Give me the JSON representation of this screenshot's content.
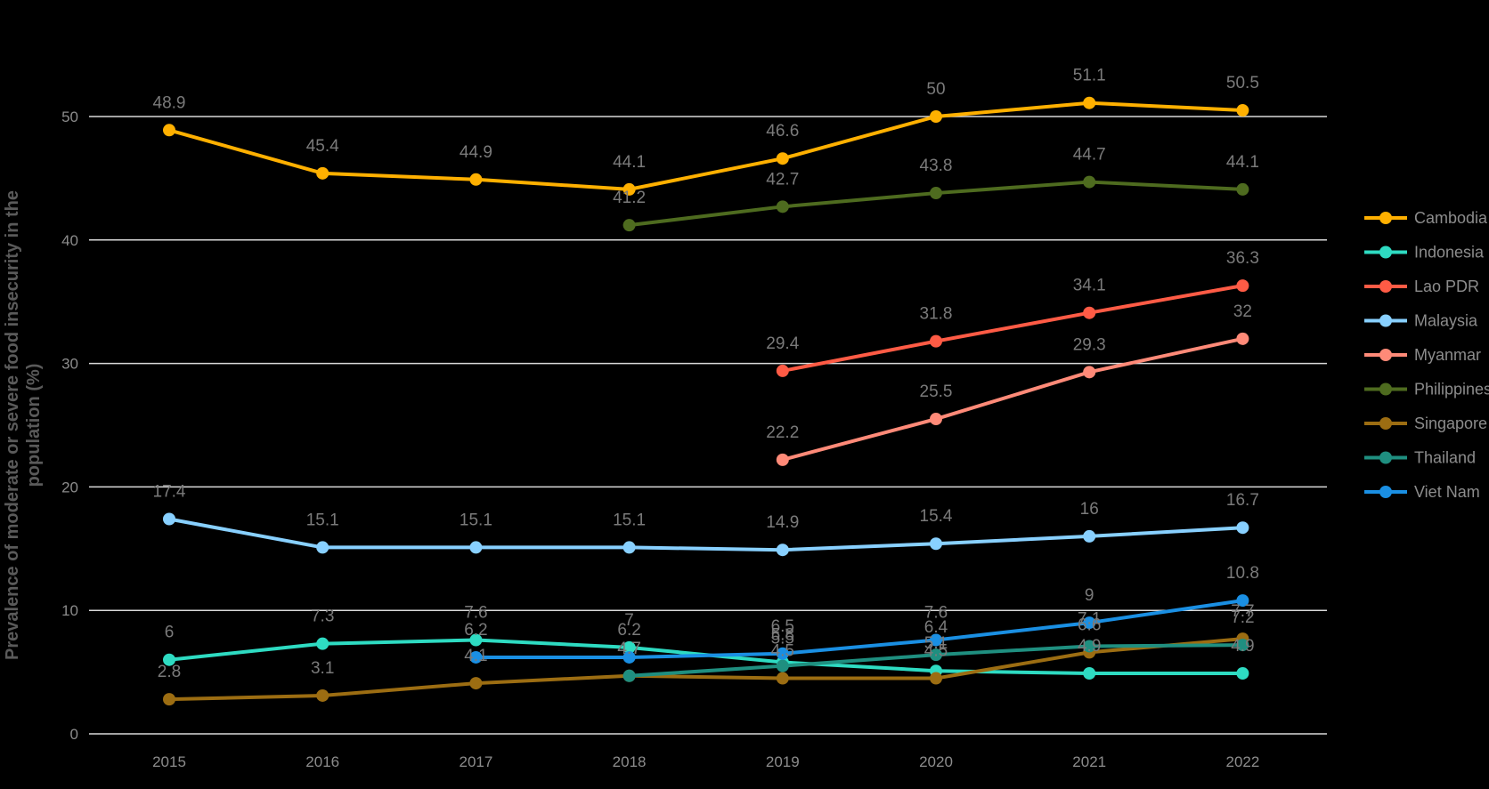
{
  "chart_data": {
    "type": "line",
    "title": "",
    "xlabel": "",
    "ylabel": "Prevalence of moderate or severe food insecurity in the population (%)",
    "ylabel_lines": [
      "Prevalence of moderate or severe food insecurity in the",
      "population (%)"
    ],
    "ylim": [
      0,
      50
    ],
    "yticks": [
      "0",
      "10",
      "20",
      "30",
      "40",
      "50"
    ],
    "grid": true,
    "legend": "right",
    "categories": [
      "2015",
      "2016",
      "2017",
      "2018",
      "2019",
      "2020",
      "2021",
      "2022"
    ],
    "series": [
      {
        "name": "Cambodia",
        "color": "#FFB000",
        "values": [
          48.9,
          45.4,
          44.9,
          44.1,
          46.6,
          50,
          51.1,
          50.5
        ],
        "labels": [
          "48.9",
          "45.4",
          "44.9",
          "44.1",
          "46.6",
          "50",
          "51.1",
          "50.5"
        ]
      },
      {
        "name": "Indonesia",
        "color": "#2EDBC2",
        "values": [
          6,
          7.3,
          7.6,
          7,
          5.8,
          5.1,
          4.9,
          4.9
        ],
        "labels": [
          "6",
          "7.3",
          "7.6",
          "7",
          "5.8",
          "5.1",
          "4.9",
          "4.9"
        ]
      },
      {
        "name": "Lao PDR",
        "color": "#FF5B45",
        "values": [
          null,
          null,
          null,
          null,
          29.4,
          31.8,
          34.1,
          36.3
        ],
        "labels": [
          null,
          null,
          null,
          null,
          "29.4",
          "31.8",
          "34.1",
          "36.3"
        ]
      },
      {
        "name": "Malaysia",
        "color": "#88D0FF",
        "values": [
          17.4,
          15.1,
          15.1,
          15.1,
          14.9,
          15.4,
          16,
          16.7
        ],
        "labels": [
          "17.4",
          "15.1",
          "15.1",
          "15.1",
          "14.9",
          "15.4",
          "16",
          "16.7"
        ]
      },
      {
        "name": "Myanmar",
        "color": "#FF8A78",
        "values": [
          null,
          null,
          null,
          null,
          22.2,
          25.5,
          29.3,
          32
        ],
        "labels": [
          null,
          null,
          null,
          null,
          "22.2",
          "25.5",
          "29.3",
          "32"
        ]
      },
      {
        "name": "Philippines",
        "color": "#4E6B1F",
        "values": [
          null,
          null,
          null,
          41.2,
          42.7,
          43.8,
          44.7,
          44.1
        ],
        "labels": [
          null,
          null,
          null,
          "41.2",
          "42.7",
          "43.8",
          "44.7",
          "44.1"
        ]
      },
      {
        "name": "Singapore",
        "color": "#9C6D12",
        "values": [
          2.8,
          3.1,
          4.1,
          4.7,
          4.5,
          4.5,
          6.6,
          7.7
        ],
        "labels": [
          "2.8",
          "3.1",
          "4.1",
          "4.7",
          "4.5",
          "4.5",
          "6.6",
          "7.7"
        ]
      },
      {
        "name": "Thailand",
        "color": "#1F8F80",
        "values": [
          null,
          null,
          null,
          4.7,
          5.5,
          6.4,
          7.1,
          7.2
        ],
        "labels": [
          null,
          null,
          null,
          "4.7",
          "5.5",
          "6.4",
          "7.1",
          "7.2"
        ]
      },
      {
        "name": "Viet Nam",
        "color": "#1A8FE3",
        "values": [
          null,
          null,
          6.2,
          6.2,
          6.5,
          7.6,
          9,
          10.8
        ],
        "labels": [
          null,
          null,
          "6.2",
          "6.2",
          "6.5",
          "7.6",
          "9",
          "10.8"
        ]
      }
    ]
  }
}
